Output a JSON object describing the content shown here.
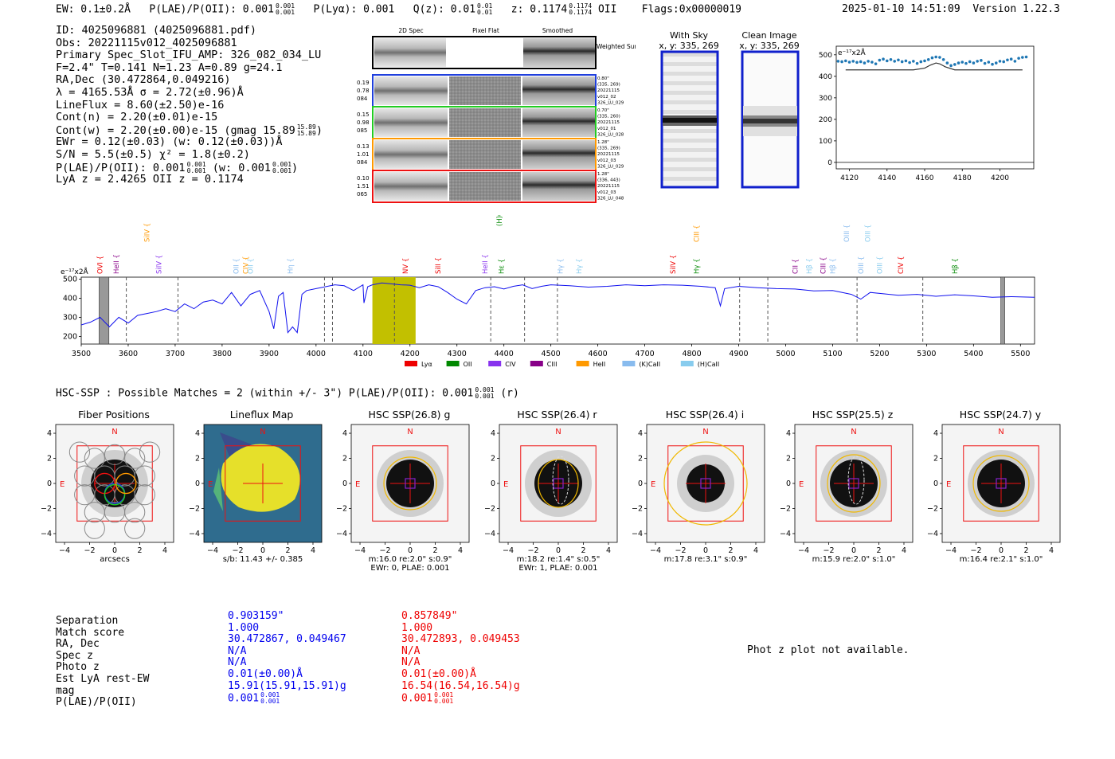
{
  "header": {
    "ew": "EW: 0.1±0.2Å",
    "plae_label": "P(LAE)/P(OII): 0.001",
    "plae_sup": "0.001",
    "plae_sub": "0.001",
    "plya": "P(Lyα): 0.001",
    "qz_label": "Q(z): 0.01",
    "qz_sup": "0.01",
    "qz_sub": "0.01",
    "z_label": "z: 0.1174",
    "z_sup": "0.1174",
    "z_sub": "0.1174",
    "z_line": "OII",
    "flags": "Flags:0x00000019",
    "datetime": "2025-01-10 14:51:09",
    "version": "Version 1.22.3"
  },
  "info": {
    "id": "ID: 4025096881 (4025096881.pdf)",
    "obs": "Obs: 20221115v012_4025096881",
    "slot": "Primary Spec_Slot_IFU_AMP: 326_082_034_LU",
    "fwhm": "F=2.4\"  T=0.141  N=1.23  A=0.89  g=24.1",
    "radec": "RA,Dec (30.472864,0.049216)",
    "lambda": "λ = 4165.53Å  σ = 2.72(±0.96)Å",
    "lineflux": "LineFlux = 8.60(±2.50)e-16",
    "contn": "Cont(n) = 2.20(±0.01)e-15",
    "contw": "Cont(w) = 2.20(±0.00)e-15 (gmag 15.89",
    "contw_sup": "15.89",
    "contw_sub": "15.89",
    "contw_end": ")",
    "ewr": "EWr = 0.12(±0.03)  (w: 0.12(±0.03))Å",
    "sn": "S/N = 5.5(±0.5)  χ² = 1.8(±0.2)",
    "plae": "P(LAE)/P(OII): 0.001",
    "plae_sup": "0.001",
    "plae_sub": "0.001",
    "plae_w": "(w: 0.001",
    "plae_w_sup": "0.001",
    "plae_w_sub": "0.001",
    "plae_w_end": ")",
    "lyaz": "LyA z = 2.4265   OII z = 0.1174"
  },
  "spec2d": {
    "col_headers": [
      "2D Spec",
      "Pixel Flat",
      "Smoothed"
    ],
    "weighted_sum": "Weighted Sum",
    "rows": [
      {
        "left": [
          "0.19",
          "0.78",
          "084"
        ],
        "right": [
          "0.80\"",
          "(335, 269)",
          "20221115",
          "v012_02",
          "326_LU_029"
        ],
        "color": "#1f3fdd"
      },
      {
        "left": [
          "0.15",
          "0.98",
          "085"
        ],
        "right": [
          "0.70\"",
          "(335, 260)",
          "20221115",
          "v012_01",
          "326_LU_028"
        ],
        "color": "#22cc22"
      },
      {
        "left": [
          "0.13",
          "1.01",
          "084"
        ],
        "right": [
          "1.28\"",
          "(335, 269)",
          "20221115",
          "v012_03",
          "326_LU_029"
        ],
        "color": "#ff9900"
      },
      {
        "left": [
          "0.10",
          "1.51",
          "065"
        ],
        "right": [
          "1.28\"",
          "(336, 443)",
          "20221115",
          "v012_03",
          "326_LU_048"
        ],
        "color": "#ee1111"
      }
    ]
  },
  "cutouts": [
    {
      "title": "With Sky",
      "coords": "x, y: 335, 269"
    },
    {
      "title": "Clean Image",
      "coords": "x, y: 335, 269"
    }
  ],
  "zoom_plot": {
    "unit": "e⁻¹⁷x2Å",
    "yticks": [
      "0",
      "100",
      "200",
      "300",
      "400",
      "500"
    ],
    "xticks": [
      "4120",
      "4140",
      "4160",
      "4180",
      "4200"
    ]
  },
  "chart_data": [
    {
      "type": "scatter",
      "title": "",
      "ylabel": "e-17 x2Å",
      "xlim": [
        4113,
        4218
      ],
      "ylim": [
        -30,
        540
      ],
      "x": [
        4114,
        4116,
        4118,
        4120,
        4122,
        4124,
        4126,
        4128,
        4130,
        4132,
        4134,
        4136,
        4138,
        4140,
        4142,
        4144,
        4146,
        4148,
        4150,
        4152,
        4154,
        4156,
        4158,
        4160,
        4162,
        4164,
        4166,
        4168,
        4170,
        4172,
        4174,
        4176,
        4178,
        4180,
        4182,
        4184,
        4186,
        4188,
        4190,
        4192,
        4194,
        4196,
        4198,
        4200,
        4202,
        4204,
        4206,
        4208,
        4210,
        4212,
        4214
      ],
      "values": [
        470,
        468,
        472,
        466,
        470,
        465,
        468,
        462,
        470,
        466,
        458,
        475,
        480,
        472,
        478,
        470,
        476,
        468,
        472,
        464,
        470,
        460,
        468,
        472,
        478,
        486,
        490,
        488,
        478,
        462,
        450,
        455,
        462,
        466,
        460,
        468,
        462,
        470,
        474,
        460,
        466,
        456,
        462,
        470,
        468,
        476,
        480,
        470,
        484,
        488,
        490
      ],
      "model_x": [
        4118,
        4154,
        4160,
        4163,
        4166,
        4168,
        4171,
        4176,
        4212
      ],
      "model_y": [
        430,
        430,
        438,
        452,
        462,
        458,
        444,
        430,
        430
      ]
    },
    {
      "type": "line",
      "title": "",
      "ylabel": "e-17 x2Å",
      "xlim": [
        3500,
        5530
      ],
      "ylim": [
        160,
        510
      ],
      "xticks": [
        "3500",
        "3600",
        "3700",
        "3800",
        "3900",
        "4000",
        "4100",
        "4200",
        "4300",
        "4400",
        "4500",
        "4600",
        "4700",
        "4800",
        "4900",
        "5000",
        "5100",
        "5200",
        "5300",
        "5400",
        "5500"
      ],
      "yticks": [
        "200",
        "300",
        "400",
        "500"
      ],
      "x": [
        3500,
        3520,
        3540,
        3560,
        3580,
        3600,
        3620,
        3640,
        3660,
        3680,
        3700,
        3720,
        3740,
        3760,
        3780,
        3800,
        3820,
        3840,
        3860,
        3880,
        3900,
        3910,
        3920,
        3930,
        3940,
        3950,
        3960,
        3970,
        3980,
        4000,
        4020,
        4040,
        4060,
        4080,
        4100,
        4102,
        4110,
        4120,
        4140,
        4160,
        4180,
        4200,
        4220,
        4240,
        4260,
        4280,
        4300,
        4320,
        4340,
        4360,
        4380,
        4400,
        4420,
        4440,
        4460,
        4480,
        4500,
        4540,
        4580,
        4620,
        4660,
        4700,
        4740,
        4780,
        4820,
        4850,
        4861,
        4870,
        4900,
        4940,
        4980,
        5020,
        5060,
        5100,
        5140,
        5160,
        5180,
        5200,
        5240,
        5280,
        5320,
        5360,
        5400,
        5440,
        5480,
        5530
      ],
      "values": [
        260,
        275,
        300,
        250,
        300,
        270,
        310,
        320,
        330,
        345,
        330,
        370,
        345,
        380,
        390,
        370,
        430,
        360,
        420,
        440,
        330,
        240,
        410,
        430,
        220,
        250,
        220,
        420,
        440,
        450,
        460,
        470,
        465,
        440,
        470,
        375,
        460,
        470,
        480,
        475,
        470,
        468,
        455,
        470,
        460,
        430,
        395,
        370,
        440,
        455,
        460,
        448,
        462,
        470,
        450,
        462,
        470,
        465,
        458,
        462,
        470,
        465,
        470,
        468,
        462,
        455,
        360,
        450,
        462,
        455,
        450,
        448,
        438,
        440,
        420,
        395,
        430,
        425,
        415,
        420,
        410,
        418,
        412,
        405,
        408,
        405
      ],
      "title_markers_note": "vertical dashed lines and shaded bands",
      "dashed_lines_x": [
        3596,
        3706,
        4018,
        4035,
        4167,
        4372,
        4444,
        4514,
        4902,
        4962,
        5152,
        5292
      ],
      "band": [
        4120,
        4212
      ],
      "hatched": [
        3538,
        3559,
        5458
      ],
      "legend": [
        "Lyα",
        "OII",
        "CIV",
        "CIII",
        "HeII",
        "(K)CaII",
        "(H)CaII"
      ],
      "legend_colors": [
        "#ee0000",
        "#008800",
        "#8833ee",
        "#880088",
        "#ff9900",
        "#88bbee",
        "#88ccee"
      ]
    }
  ],
  "line_labels": [
    {
      "text": "SiIV",
      "color": "#ff9900",
      "x": 3640,
      "row": "high"
    },
    {
      "text": "OVI",
      "color": "#ee0000",
      "x": 3540,
      "row": "low"
    },
    {
      "text": "HeII",
      "color": "#880088",
      "x": 3575,
      "row": "low"
    },
    {
      "text": "SiIV",
      "color": "#8833ee",
      "x": 3665,
      "row": "low"
    },
    {
      "text": "OII",
      "color": "#88bbee",
      "x": 3830,
      "row": "low"
    },
    {
      "text": "CIV",
      "color": "#ff9900",
      "x": 3850,
      "row": "low"
    },
    {
      "text": "OII",
      "color": "#88ccee",
      "x": 3860,
      "row": "low"
    },
    {
      "text": "Hη",
      "color": "#88bbee",
      "x": 3945,
      "row": "low"
    },
    {
      "text": "(H)CaII",
      "color": "#008800",
      "x": 4390,
      "row": "top"
    },
    {
      "text": "NV",
      "color": "#ee0000",
      "x": 4190,
      "row": "low"
    },
    {
      "text": "SiII",
      "color": "#ee0000",
      "x": 4260,
      "row": "low"
    },
    {
      "text": "HeII",
      "color": "#8833ee",
      "x": 4360,
      "row": "low"
    },
    {
      "text": "Hε",
      "color": "#008800",
      "x": 4395,
      "row": "low"
    },
    {
      "text": "Hγ",
      "color": "#88bbee",
      "x": 4520,
      "row": "low"
    },
    {
      "text": "Hγ",
      "color": "#88ccee",
      "x": 4560,
      "row": "low"
    },
    {
      "text": "SiIV",
      "color": "#ee0000",
      "x": 4760,
      "row": "low"
    },
    {
      "text": "CIII",
      "color": "#ff9900",
      "x": 4810,
      "row": "high"
    },
    {
      "text": "Hγ",
      "color": "#008800",
      "x": 4810,
      "row": "low"
    },
    {
      "text": "CII",
      "color": "#880088",
      "x": 5020,
      "row": "low"
    },
    {
      "text": "Hβ",
      "color": "#88ccee",
      "x": 5050,
      "row": "low"
    },
    {
      "text": "CIII",
      "color": "#880088",
      "x": 5080,
      "row": "low"
    },
    {
      "text": "Hβ",
      "color": "#88bbee",
      "x": 5100,
      "row": "low"
    },
    {
      "text": "OIII",
      "color": "#88bbee",
      "x": 5130,
      "row": "high"
    },
    {
      "text": "OIII",
      "color": "#88ccee",
      "x": 5175,
      "row": "high"
    },
    {
      "text": "OIII",
      "color": "#88bbee",
      "x": 5160,
      "row": "low"
    },
    {
      "text": "OIII",
      "color": "#88ccee",
      "x": 5200,
      "row": "low"
    },
    {
      "text": "CIV",
      "color": "#ee0000",
      "x": 5245,
      "row": "low"
    },
    {
      "text": "Hβ",
      "color": "#008800",
      "x": 5360,
      "row": "low"
    }
  ],
  "spectrum": {
    "unit": "e⁻¹⁷x2Å"
  },
  "hsc": {
    "heading": "HSC-SSP : Possible Matches = 2 (within +/- 3\")   P(LAE)/P(OII): 0.001",
    "heading_sup": "0.001",
    "heading_sub": "0.001",
    "heading_end": "(r)",
    "panels": [
      {
        "title": "Fiber Positions",
        "caption1": "arcsecs",
        "caption2": ""
      },
      {
        "title": "Lineflux Map",
        "caption1": "s/b: 11.43 +/- 0.385",
        "caption2": ""
      },
      {
        "title": "HSC SSP(26.8) g",
        "caption1": "m:16.0  re:2.0\"  s:0.9\"",
        "caption2": "EWr: 0, PLAE: 0.001"
      },
      {
        "title": "HSC SSP(26.4) r",
        "caption1": "m:18.2  re:1.4\"  s:0.5\"",
        "caption2": "EWr: 1, PLAE: 0.001"
      },
      {
        "title": "HSC SSP(26.4) i",
        "caption1": "m:17.8  re:3.1\"  s:0.9\"",
        "caption2": ""
      },
      {
        "title": "HSC SSP(25.5) z",
        "caption1": "m:15.9  re:2.0\"  s:1.0\"",
        "caption2": ""
      },
      {
        "title": "HSC SSP(24.7) y",
        "caption1": "m:16.4  re:2.1\"  s:1.0\"",
        "caption2": ""
      }
    ],
    "axis_ticks": [
      "−4",
      "−2",
      "0",
      "2",
      "4"
    ],
    "axis_yticks": [
      "4",
      "2",
      "0",
      "−2",
      "−4"
    ],
    "north": "N",
    "east": "E"
  },
  "matches": {
    "labels": [
      "Separation",
      "Match score",
      "RA, Dec",
      "Spec z",
      "Photo z",
      "Est LyA rest-EW",
      "mag",
      "P(LAE)/P(OII)"
    ],
    "col1": [
      "0.903159\"",
      "1.000",
      "30.472867, 0.049467",
      "N/A",
      "N/A",
      "0.01(±0.00)Å",
      "15.91(15.91,15.91)g",
      "0.001"
    ],
    "col1_plae_sup": "0.001",
    "col1_plae_sub": "0.001",
    "col2": [
      "0.857849\"",
      "1.000",
      "30.472893, 0.049453",
      "N/A",
      "N/A",
      "0.01(±0.00)Å",
      "16.54(16.54,16.54)g",
      "0.001"
    ],
    "col2_plae_sup": "0.001",
    "col2_plae_sub": "0.001",
    "photz_msg": "Phot z plot not available."
  }
}
